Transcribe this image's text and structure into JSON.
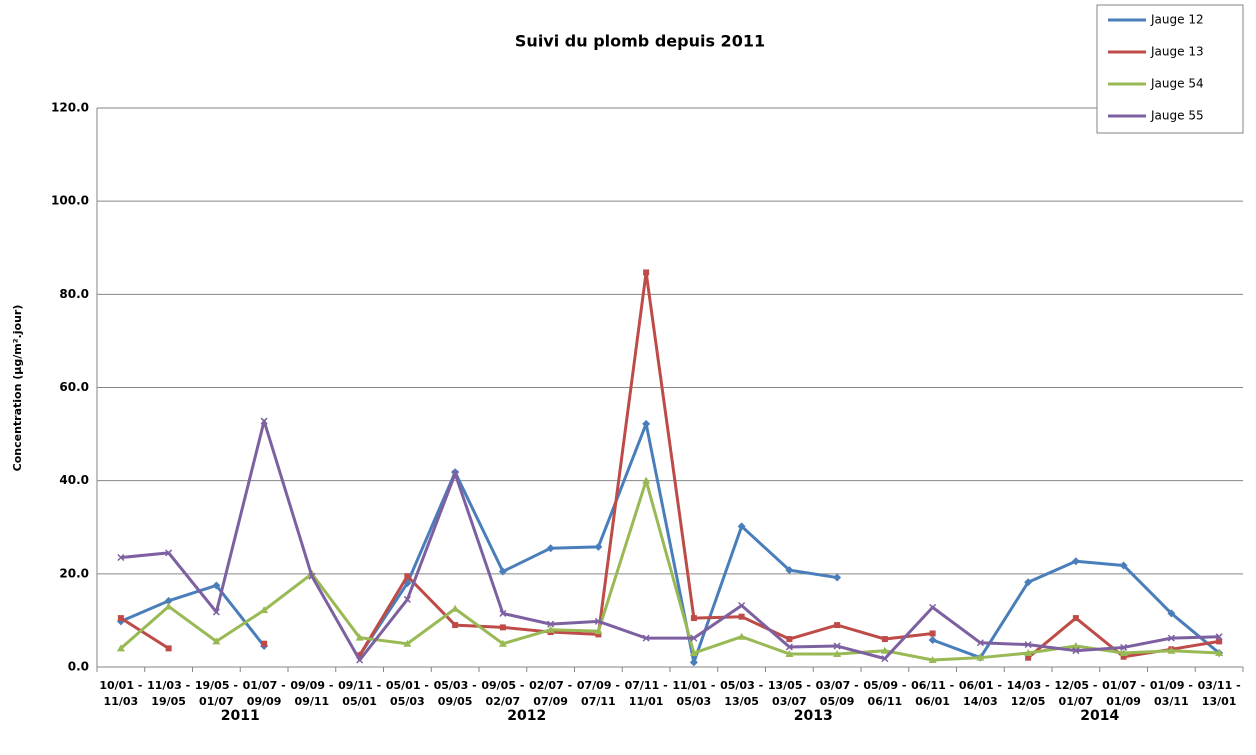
{
  "chart_data": {
    "type": "line",
    "title": "Suivi du plomb depuis 2011",
    "y_label": "Concentration (µg/m².jour)",
    "categories": [
      "10/01 - 11/03",
      "11/03 - 19/05",
      "19/05 - 01/07",
      "01/07 - 09/09",
      "09/09 - 09/11",
      "09/11 - 05/01",
      "05/01 - 05/03",
      "05/03 - 09/05",
      "09/05 - 02/07",
      "02/07 - 07/09",
      "07/09 - 07/11",
      "07/11 - 11/01",
      "11/01 - 05/03",
      "05/03 - 13/05",
      "13/05 - 03/07",
      "03/07 - 05/09",
      "05/09 - 06/11",
      "06/11 - 06/01",
      "06/01 - 14/03",
      "14/03 - 12/05",
      "12/05 - 01/07",
      "01/07 - 01/09",
      "01/09 - 03/11",
      "03/11 - 13/01"
    ],
    "years": [
      "2011",
      "2012",
      "2013",
      "2014"
    ],
    "series": [
      {
        "name": "Jauge 12",
        "color": "#4a7ebb",
        "marker": "diamond",
        "values": [
          9.8,
          14.2,
          17.5,
          4.5,
          null,
          2.5,
          18,
          41.8,
          20.5,
          25.5,
          25.8,
          52.2,
          1,
          30.2,
          20.8,
          19.2,
          null,
          5.8,
          2,
          18.2,
          22.7,
          21.8,
          11.5,
          3
        ]
      },
      {
        "name": "Jauge 13",
        "color": "#be4b48",
        "marker": "square",
        "values": [
          10.5,
          4,
          null,
          5,
          null,
          2.5,
          19.5,
          9,
          8.5,
          7.5,
          7,
          84.7,
          10.5,
          10.8,
          6,
          9,
          6,
          7.2,
          null,
          2,
          10.5,
          2.2,
          3.8,
          5.5
        ]
      },
      {
        "name": "Jauge 54",
        "color": "#98b954",
        "marker": "triangle",
        "values": [
          4,
          13,
          5.5,
          12.2,
          20,
          6.3,
          5,
          12.5,
          5,
          8,
          7.7,
          40,
          3,
          6.5,
          2.8,
          2.8,
          3.5,
          1.5,
          2,
          3,
          4.5,
          3,
          3.5,
          3
        ]
      },
      {
        "name": "Jauge 55",
        "color": "#7d60a0",
        "marker": "x",
        "values": [
          23.5,
          24.5,
          11.8,
          52.8,
          19.5,
          1.5,
          14.5,
          41.5,
          11.5,
          9.2,
          9.8,
          6.2,
          6.2,
          13.2,
          4.3,
          4.5,
          1.8,
          12.8,
          5.2,
          4.8,
          3.5,
          4.2,
          6.2,
          6.5
        ]
      }
    ],
    "ylim": [
      0,
      120
    ],
    "yticks": [
      {
        "value": 0,
        "label": "0.0"
      },
      {
        "value": 20,
        "label": "20.0"
      },
      {
        "value": 40,
        "label": "40.0"
      },
      {
        "value": 60,
        "label": "60.0"
      },
      {
        "value": 80,
        "label": "80.0"
      },
      {
        "value": 100,
        "label": "100.0"
      },
      {
        "value": 120,
        "label": "120.0"
      }
    ],
    "grid": true,
    "legend": "top-right"
  }
}
